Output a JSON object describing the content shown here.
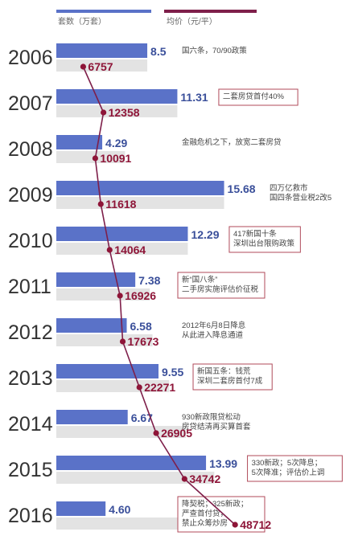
{
  "chart_data": {
    "type": "bar+line",
    "legend": {
      "count_label": "套数（万套）",
      "price_label": "均价（元/平）"
    },
    "colors": {
      "bar": "#5a72c8",
      "bar_shadow": "#e3e3e3",
      "line": "#7e1f4a",
      "marker": "#8e1538",
      "note_border": "#b04a5a"
    },
    "categories": [
      "2006",
      "2007",
      "2008",
      "2009",
      "2010",
      "2011",
      "2012",
      "2013",
      "2014",
      "2015",
      "2016"
    ],
    "series": [
      {
        "key": "count",
        "name": "套数（万套）",
        "values": [
          8.5,
          11.31,
          4.29,
          15.68,
          12.29,
          7.38,
          6.58,
          9.55,
          6.67,
          13.99,
          4.6
        ]
      },
      {
        "key": "price",
        "name": "均价（元/平）",
        "values": [
          6757,
          12358,
          10091,
          11618,
          14064,
          16926,
          17673,
          22271,
          26905,
          34742,
          48712
        ]
      }
    ],
    "count_labels": [
      "8.5",
      "11.31",
      "4.29",
      "15.68",
      "12.29",
      "7.38",
      "6.58",
      "9.55",
      "6.67",
      "13.99",
      "4.60"
    ],
    "price_labels": [
      "6757",
      "12358",
      "10091",
      "11618",
      "14064",
      "16926",
      "17673",
      "22271",
      "26905",
      "34742",
      "48712"
    ],
    "annotations": [
      {
        "lines": [
          "国六条，70/90政策"
        ],
        "boxed": false
      },
      {
        "lines": [
          "二套房贷首付40%"
        ],
        "boxed": true
      },
      {
        "lines": [
          "金融危机之下，放宽二套房贷"
        ],
        "boxed": false
      },
      {
        "lines": [
          "四万亿救市",
          "国四条营业税2改5"
        ],
        "boxed": false
      },
      {
        "lines": [
          "417新国十条",
          "深圳出台限购政策"
        ],
        "boxed": true
      },
      {
        "lines": [
          "新“国八条”",
          "二手房实施评估价征税"
        ],
        "boxed": true
      },
      {
        "lines": [
          "2012年6月8日降息",
          "从此进入降息通道"
        ],
        "boxed": false
      },
      {
        "lines": [
          "新国五条：钱荒",
          "深圳二套房首付7成"
        ],
        "boxed": true
      },
      {
        "lines": [
          "930新政限贷松动",
          "房贷结清再买算首套"
        ],
        "boxed": false
      },
      {
        "lines": [
          "330新政；5次降息；",
          "5次降准；评估价上调"
        ],
        "boxed": true
      },
      {
        "lines": [
          "降契税；325新政；",
          "严查首付贷，",
          "禁止众筹炒房"
        ],
        "boxed": true
      }
    ]
  }
}
